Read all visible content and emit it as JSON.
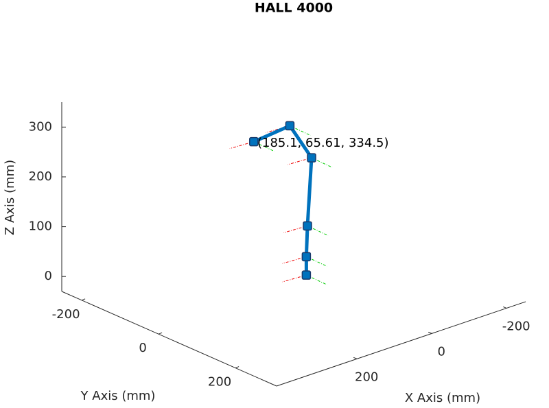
{
  "chart_data": {
    "type": "line3d",
    "title": "HALL 4000",
    "xlabel": "X Axis (mm)",
    "ylabel": "Y Axis (mm)",
    "zlabel": "Z Axis (mm)",
    "annotation": "(185.1, 65.61, 334.5)",
    "series": [
      {
        "color": "#0072bd",
        "x": [
          20,
          20,
          17,
          6,
          64,
          228
        ],
        "y": [
          0,
          0,
          0,
          0,
          0,
          65.61
        ],
        "z": [
          -12,
          25,
          86,
          220,
          299,
          331
        ]
      }
    ],
    "xlim": [
      -251,
      415
    ],
    "ylim": [
      -252,
      307
    ],
    "zlim": [
      -30,
      350
    ],
    "xticks": [
      -200,
      0,
      200
    ],
    "yticks": [
      -200,
      0,
      200
    ],
    "zticks": [
      0,
      100,
      200,
      300
    ]
  }
}
